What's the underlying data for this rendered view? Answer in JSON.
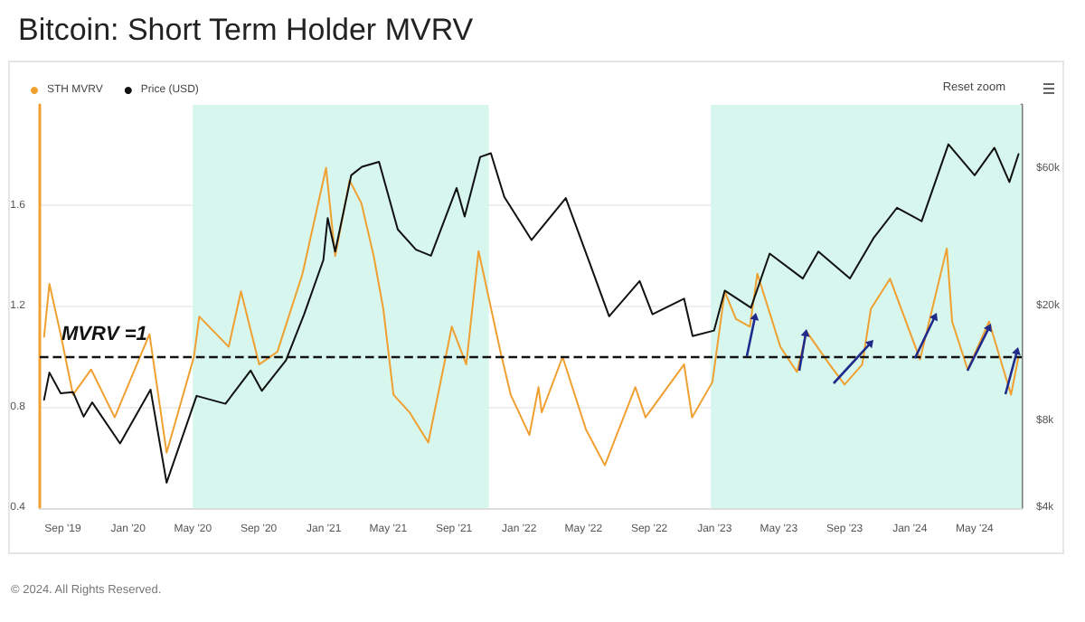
{
  "chart_data": {
    "type": "line",
    "title": "Bitcoin: Short Term Holder MVRV",
    "x": [
      "2019-07-28",
      "2019-08-07",
      "2019-08-28",
      "2019-09-20",
      "2019-10-24",
      "2019-12-07",
      "2020-02-10",
      "2020-03-13",
      "2020-05-03",
      "2020-05-13",
      "2020-07-07",
      "2020-07-30",
      "2020-09-02",
      "2020-10-06",
      "2020-11-22",
      "2021-01-05",
      "2021-01-22",
      "2021-02-18",
      "2021-03-12",
      "2021-04-04",
      "2021-04-22",
      "2021-05-11",
      "2021-06-10",
      "2021-07-15",
      "2021-08-28",
      "2021-09-24",
      "2021-10-17",
      "2021-11-27",
      "2021-12-16",
      "2022-01-20",
      "2022-02-06",
      "2022-02-12",
      "2022-03-23",
      "2022-05-06",
      "2022-06-10",
      "2022-08-06",
      "2022-08-25",
      "2022-11-05",
      "2022-11-20",
      "2022-12-28",
      "2023-01-20",
      "2023-02-10",
      "2023-03-08",
      "2023-03-22",
      "2023-05-04",
      "2023-06-04",
      "2023-06-22",
      "2023-08-04",
      "2023-09-01",
      "2023-10-04",
      "2023-10-20",
      "2023-11-25",
      "2024-01-20",
      "2024-03-10",
      "2024-03-20",
      "2024-04-18",
      "2024-05-28",
      "2024-07-08",
      "2024-07-22"
    ],
    "series": [
      {
        "name": "STH MVRV",
        "color": "#f0a030",
        "values": [
          1.08,
          1.29,
          1.09,
          0.85,
          0.95,
          0.76,
          1.09,
          0.62,
          1.0,
          1.16,
          1.04,
          1.26,
          0.97,
          1.02,
          1.33,
          1.75,
          1.4,
          1.7,
          1.61,
          1.4,
          1.19,
          0.85,
          0.78,
          0.66,
          1.12,
          0.97,
          1.42,
          1.02,
          0.85,
          0.69,
          0.88,
          0.78,
          1.0,
          0.71,
          0.57,
          0.88,
          0.76,
          0.97,
          0.76,
          0.9,
          1.26,
          1.15,
          1.12,
          1.33,
          1.04,
          0.94,
          1.1,
          0.97,
          0.89,
          0.97,
          1.19,
          1.31,
          0.99,
          1.43,
          1.14,
          0.95,
          1.14,
          0.85,
          1.0
        ]
      },
      {
        "name": "Price (USD)",
        "color": "#111111",
        "axis": "y2",
        "x": [
          "2019-07-28",
          "2019-08-07",
          "2019-08-28",
          "2019-09-20",
          "2019-10-10",
          "2019-10-26",
          "2019-12-17",
          "2020-02-12",
          "2020-03-13",
          "2020-05-08",
          "2020-07-01",
          "2020-08-17",
          "2020-09-07",
          "2020-10-22",
          "2020-11-25",
          "2020-12-31",
          "2021-01-08",
          "2021-01-22",
          "2021-02-21",
          "2021-03-13",
          "2021-04-14",
          "2021-05-19",
          "2021-06-22",
          "2021-07-20",
          "2021-09-06",
          "2021-09-21",
          "2021-10-20",
          "2021-11-09",
          "2021-12-04",
          "2022-01-24",
          "2022-03-29",
          "2022-05-12",
          "2022-06-18",
          "2022-08-14",
          "2022-09-07",
          "2022-11-05",
          "2022-11-21",
          "2022-12-31",
          "2023-01-20",
          "2023-03-10",
          "2023-04-14",
          "2023-06-15",
          "2023-07-14",
          "2023-09-11",
          "2023-10-25",
          "2023-12-08",
          "2024-01-23",
          "2024-03-13",
          "2024-05-01",
          "2024-06-07",
          "2024-07-05",
          "2024-07-22"
        ],
        "values": [
          9500,
          11800,
          10000,
          10100,
          8300,
          9300,
          6700,
          10300,
          4900,
          9800,
          9200,
          12000,
          10200,
          13000,
          18800,
          29000,
          40500,
          31000,
          57000,
          61000,
          63500,
          37000,
          31500,
          30000,
          51500,
          41000,
          66000,
          68000,
          48000,
          34000,
          47500,
          28500,
          18500,
          24500,
          18800,
          21300,
          15800,
          16500,
          22700,
          19800,
          30500,
          25000,
          31000,
          25000,
          34500,
          44000,
          39500,
          73000,
          57000,
          71000,
          54000,
          67500
        ]
      }
    ],
    "xlim": [
      "2019-07-20",
      "2024-07-28"
    ],
    "xticks": [
      {
        "value": "2019-09-01",
        "label": "Sep '19"
      },
      {
        "value": "2020-01-01",
        "label": "Jan '20"
      },
      {
        "value": "2020-05-01",
        "label": "May '20"
      },
      {
        "value": "2020-09-01",
        "label": "Sep '20"
      },
      {
        "value": "2021-01-01",
        "label": "Jan '21"
      },
      {
        "value": "2021-05-01",
        "label": "May '21"
      },
      {
        "value": "2021-09-01",
        "label": "Sep '21"
      },
      {
        "value": "2022-01-01",
        "label": "Jan '22"
      },
      {
        "value": "2022-05-01",
        "label": "May '22"
      },
      {
        "value": "2022-09-01",
        "label": "Sep '22"
      },
      {
        "value": "2023-01-01",
        "label": "Jan '23"
      },
      {
        "value": "2023-05-01",
        "label": "May '23"
      },
      {
        "value": "2023-09-01",
        "label": "Sep '23"
      },
      {
        "value": "2024-01-01",
        "label": "Jan '24"
      },
      {
        "value": "2024-05-01",
        "label": "May '24"
      }
    ],
    "ylim": [
      0.4,
      2.0
    ],
    "yticks": [
      0.4,
      0.8,
      1.2,
      1.6
    ],
    "y2lim": [
      4000,
      100000
    ],
    "y2ticks": [
      {
        "value": 4000,
        "label": "$4k"
      },
      {
        "value": 8000,
        "label": "$8k"
      },
      {
        "value": 20000,
        "label": "$20k"
      },
      {
        "value": 60000,
        "label": "$60k"
      }
    ],
    "log": "y2",
    "grid": "y",
    "legend": "top left",
    "marker": "none",
    "line_style": "solid",
    "ref_lines": [
      {
        "axis": "y",
        "value": 1,
        "label": "MVRV =1",
        "color": "#111111",
        "line_style": "dashed"
      }
    ],
    "bands": [
      {
        "axis": "x",
        "from": "2020-05-01",
        "to": "2021-11-05",
        "color": "#d6f6ee"
      },
      {
        "axis": "x",
        "from": "2022-12-25",
        "to": "2024-07-28",
        "color": "#d6f6ee"
      }
    ],
    "annotations": [
      "Reset zoom",
      "© 2024. All Rights Reserved."
    ]
  }
}
